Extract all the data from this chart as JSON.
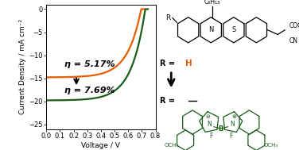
{
  "xlabel": "Voltage / V",
  "ylabel": "Current Density / mA cm⁻²",
  "xlim": [
    0,
    0.8
  ],
  "ylim": [
    -26,
    1
  ],
  "yticks": [
    -25,
    -20,
    -15,
    -10,
    -5,
    0
  ],
  "xticks": [
    0,
    0.1,
    0.2,
    0.3,
    0.4,
    0.5,
    0.6,
    0.7,
    0.8
  ],
  "green_color": "#1a5c1a",
  "orange_color": "#e85c00",
  "green_jsc": -19.8,
  "green_voc": 0.725,
  "orange_jsc": -14.8,
  "orange_voc": 0.695,
  "eta_green": "η = 7.69%",
  "eta_orange": "η = 5.17%",
  "background_color": "#ffffff",
  "label_fontsize": 6.5,
  "tick_fontsize": 6,
  "annotation_fontsize": 8
}
